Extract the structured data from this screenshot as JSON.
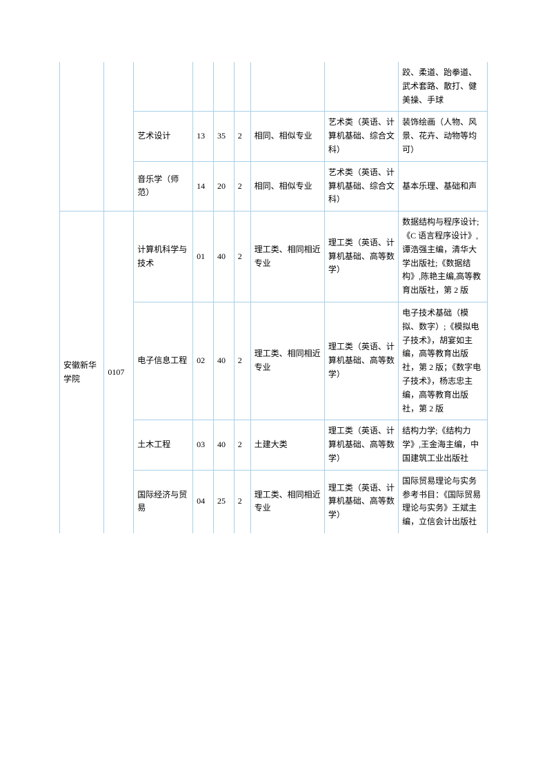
{
  "border_color": "#a7cfe8",
  "text_color": "#000000",
  "font_size": 12,
  "rows": [
    {
      "school": "",
      "school_code": "",
      "major": "",
      "n1": "",
      "n2": "",
      "n3": "",
      "scope": "",
      "category": "",
      "book": "跤、柔道、跆拳道、武术套路、散打、健美操、手球"
    },
    {
      "school": "",
      "school_code": "",
      "major": "艺术设计",
      "n1": "13",
      "n2": "35",
      "n3": "2",
      "scope": "相同、相似专业",
      "category": "艺术类（英语、计算机基础、综合文科）",
      "book": "装饰绘画（人物、风景、花卉、动物等均可）"
    },
    {
      "school": "",
      "school_code": "",
      "major": "音乐学（师范）",
      "n1": "14",
      "n2": "20",
      "n3": "2",
      "scope": "相同、相似专业",
      "category": "艺术类（英语、计算机基础、综合文科）",
      "book": "基本乐理、基础和声"
    },
    {
      "school": "安徽新华学院",
      "school_code": "0107",
      "major": "计算机科学与技术",
      "n1": "01",
      "n2": "40",
      "n3": "2",
      "scope": "理工类、相同相近专业",
      "category": "理工类（英语、计算机基础、高等数学）",
      "book": "数据结构与程序设计;《C 语言程序设计》,谭浩强主编，清华大学出版社;《数据结构》,陈艳主编,高等教育出版社，第 2 版"
    },
    {
      "school": "",
      "school_code": "",
      "major": "电子信息工程",
      "n1": "02",
      "n2": "40",
      "n3": "2",
      "scope": "理工类、相同相近专业",
      "category": "理工类（英语、计算机基础、高等数学）",
      "book": "电子技术基础（模拟、数字）;《模拟电子技术》，胡宴如主编，高等教育出版社，第 2 版；《数字电子技术》，杨志忠主编，高等教育出版社，第 2 版"
    },
    {
      "school": "",
      "school_code": "",
      "major": "土木工程",
      "n1": "03",
      "n2": "40",
      "n3": "2",
      "scope": "土建大类",
      "category": "理工类（英语、计算机基础、高等数学）",
      "book": "结构力学;《结构力学》,王金海主编，中国建筑工业出版社"
    },
    {
      "school": "",
      "school_code": "",
      "major": "国际经济与贸易",
      "n1": "04",
      "n2": "25",
      "n3": "2",
      "scope": "理工类、相同相近专业",
      "category": "理工类（英语、计算机基础、高等数学）",
      "book": "国际贸易理论与实务参考书目：《国际贸易理论与实务》王斌主编，立信会计出版社"
    }
  ]
}
